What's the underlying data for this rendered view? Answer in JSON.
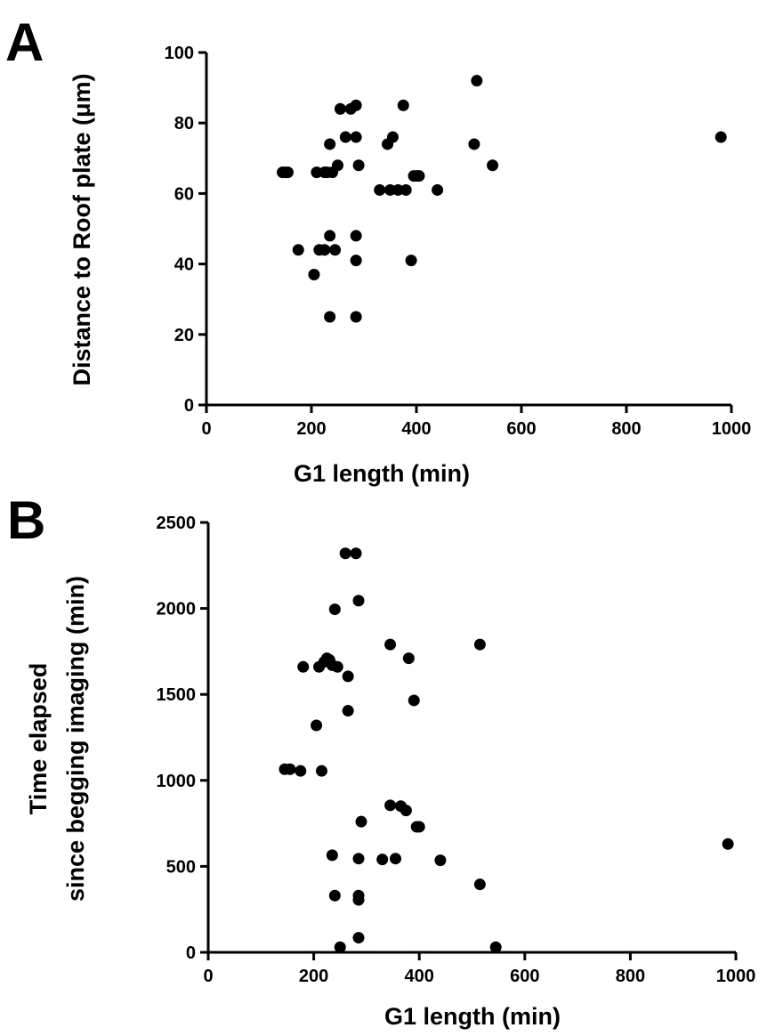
{
  "chart_data": [
    {
      "type": "scatter",
      "panel": "A",
      "xlabel": "G1 length (min)",
      "ylabel": "Distance to Roof plate (μm)",
      "xlim": [
        0,
        1000
      ],
      "ylim": [
        0,
        100
      ],
      "xticks": [
        "0",
        "200",
        "400",
        "600",
        "800",
        "1000"
      ],
      "yticks": [
        "0",
        "20",
        "40",
        "60",
        "80",
        "100"
      ],
      "grid": false,
      "color": "#000000",
      "points": [
        [
          145,
          66
        ],
        [
          150,
          66
        ],
        [
          155,
          66
        ],
        [
          175,
          44
        ],
        [
          205,
          37
        ],
        [
          210,
          66
        ],
        [
          215,
          44
        ],
        [
          225,
          44
        ],
        [
          225,
          66
        ],
        [
          230,
          66
        ],
        [
          235,
          48
        ],
        [
          235,
          74
        ],
        [
          235,
          25
        ],
        [
          240,
          66
        ],
        [
          245,
          44
        ],
        [
          250,
          68
        ],
        [
          255,
          84
        ],
        [
          265,
          76
        ],
        [
          275,
          84
        ],
        [
          285,
          85
        ],
        [
          285,
          76
        ],
        [
          285,
          48
        ],
        [
          285,
          41
        ],
        [
          285,
          25
        ],
        [
          290,
          68
        ],
        [
          330,
          61
        ],
        [
          345,
          74
        ],
        [
          350,
          61
        ],
        [
          355,
          76
        ],
        [
          365,
          61
        ],
        [
          375,
          85
        ],
        [
          380,
          61
        ],
        [
          390,
          41
        ],
        [
          395,
          65
        ],
        [
          400,
          65
        ],
        [
          405,
          65
        ],
        [
          440,
          61
        ],
        [
          510,
          74
        ],
        [
          515,
          92
        ],
        [
          545,
          68
        ],
        [
          980,
          76
        ]
      ]
    },
    {
      "type": "scatter",
      "panel": "B",
      "xlabel": "G1 length (min)",
      "ylabel_lines": [
        "Time elapsed",
        "since begging imaging (min)"
      ],
      "xlim": [
        0,
        1000
      ],
      "ylim": [
        0,
        2500
      ],
      "xticks": [
        "0",
        "200",
        "400",
        "600",
        "800",
        "1000"
      ],
      "yticks": [
        "0",
        "500",
        "1000",
        "1500",
        "2000",
        "2500"
      ],
      "grid": false,
      "color": "#000000",
      "points": [
        [
          145,
          1065
        ],
        [
          155,
          1065
        ],
        [
          175,
          1055
        ],
        [
          180,
          1660
        ],
        [
          205,
          1320
        ],
        [
          210,
          1660
        ],
        [
          215,
          1055
        ],
        [
          220,
          1690
        ],
        [
          225,
          1710
        ],
        [
          230,
          1700
        ],
        [
          235,
          1670
        ],
        [
          240,
          1995
        ],
        [
          235,
          565
        ],
        [
          240,
          330
        ],
        [
          245,
          1660
        ],
        [
          250,
          30
        ],
        [
          260,
          2320
        ],
        [
          265,
          1405
        ],
        [
          265,
          1605
        ],
        [
          280,
          2320
        ],
        [
          285,
          2045
        ],
        [
          285,
          85
        ],
        [
          285,
          545
        ],
        [
          285,
          330
        ],
        [
          285,
          305
        ],
        [
          290,
          760
        ],
        [
          330,
          540
        ],
        [
          345,
          1790
        ],
        [
          345,
          855
        ],
        [
          355,
          545
        ],
        [
          365,
          850
        ],
        [
          375,
          825
        ],
        [
          380,
          1710
        ],
        [
          390,
          1465
        ],
        [
          395,
          730
        ],
        [
          400,
          730
        ],
        [
          440,
          535
        ],
        [
          515,
          1790
        ],
        [
          515,
          395
        ],
        [
          545,
          30
        ],
        [
          985,
          630
        ]
      ]
    }
  ]
}
